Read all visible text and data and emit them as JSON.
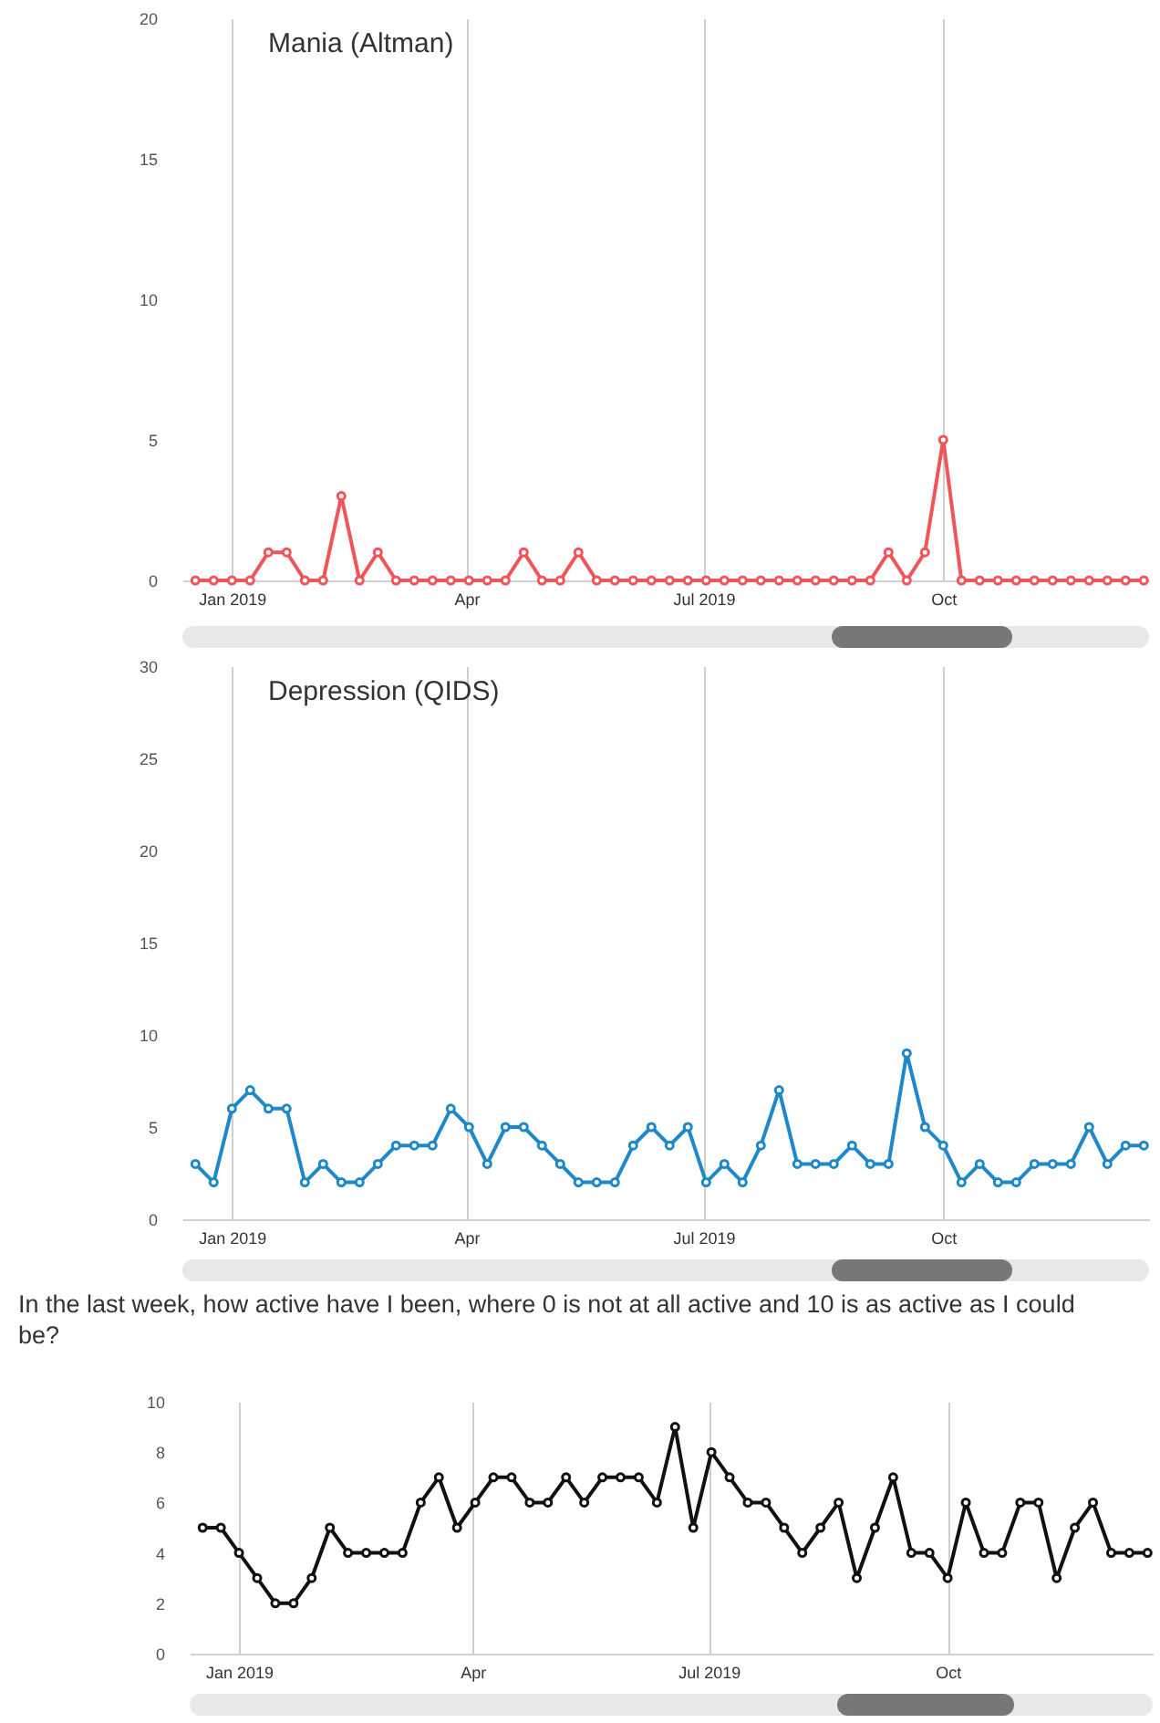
{
  "chart_data": [
    {
      "type": "line",
      "x": [
        "2018-12-18",
        "2018-12-25",
        "2019-01-01",
        "2019-01-08",
        "2019-01-15",
        "2019-01-22",
        "2019-01-29",
        "2019-02-05",
        "2019-02-12",
        "2019-02-19",
        "2019-02-26",
        "2019-03-05",
        "2019-03-12",
        "2019-03-19",
        "2019-03-26",
        "2019-04-02",
        "2019-04-09",
        "2019-04-16",
        "2019-04-23",
        "2019-04-30",
        "2019-05-07",
        "2019-05-14",
        "2019-05-21",
        "2019-05-28",
        "2019-06-04",
        "2019-06-11",
        "2019-06-18",
        "2019-06-25",
        "2019-07-02",
        "2019-07-09",
        "2019-07-16",
        "2019-07-23",
        "2019-07-30",
        "2019-08-06",
        "2019-08-13",
        "2019-08-20",
        "2019-08-27",
        "2019-09-03",
        "2019-09-10",
        "2019-09-17",
        "2019-09-24",
        "2019-10-01",
        "2019-10-08",
        "2019-10-15",
        "2019-10-22",
        "2019-10-29",
        "2019-11-05",
        "2019-11-12",
        "2019-11-19",
        "2019-11-26",
        "2019-12-03",
        "2019-12-10",
        "2019-12-17"
      ],
      "series": [
        {
          "name": "Mania (Altman)",
          "color": "#f0555a",
          "values": [
            0,
            0,
            0,
            0,
            1,
            1,
            0,
            0,
            3,
            0,
            1,
            0,
            0,
            0,
            0,
            0,
            0,
            0,
            1,
            0,
            0,
            1,
            0,
            0,
            0,
            0,
            0,
            0,
            0,
            0,
            0,
            0,
            0,
            0,
            0,
            0,
            0,
            0,
            1,
            0,
            1,
            5,
            0,
            0,
            0,
            0,
            0,
            0,
            0,
            0,
            0,
            0,
            0
          ]
        }
      ],
      "xlim": [
        "2018-12-13",
        "2019-12-19"
      ],
      "xticks": [
        {
          "value": "2019-01-01",
          "label": "Jan 2019"
        },
        {
          "value": "2019-04-01",
          "label": "Apr"
        },
        {
          "value": "2019-07-01",
          "label": "Jul 2019"
        },
        {
          "value": "2019-10-01",
          "label": "Oct"
        }
      ],
      "ylim": [
        0,
        20
      ],
      "yticks": [
        0,
        5,
        10,
        15,
        20
      ],
      "grid": "x",
      "legend": "top left",
      "marker": "circle"
    },
    {
      "type": "line",
      "x": [
        "2018-12-18",
        "2018-12-25",
        "2019-01-01",
        "2019-01-08",
        "2019-01-15",
        "2019-01-22",
        "2019-01-29",
        "2019-02-05",
        "2019-02-12",
        "2019-02-19",
        "2019-02-26",
        "2019-03-05",
        "2019-03-12",
        "2019-03-19",
        "2019-03-26",
        "2019-04-02",
        "2019-04-09",
        "2019-04-16",
        "2019-04-23",
        "2019-04-30",
        "2019-05-07",
        "2019-05-14",
        "2019-05-21",
        "2019-05-28",
        "2019-06-04",
        "2019-06-11",
        "2019-06-18",
        "2019-06-25",
        "2019-07-02",
        "2019-07-09",
        "2019-07-16",
        "2019-07-23",
        "2019-07-30",
        "2019-08-06",
        "2019-08-13",
        "2019-08-20",
        "2019-08-27",
        "2019-09-03",
        "2019-09-10",
        "2019-09-17",
        "2019-09-24",
        "2019-10-01",
        "2019-10-08",
        "2019-10-15",
        "2019-10-22",
        "2019-10-29",
        "2019-11-05",
        "2019-11-12",
        "2019-11-19",
        "2019-11-26",
        "2019-12-03",
        "2019-12-10",
        "2019-12-17"
      ],
      "series": [
        {
          "name": "Depression (QIDS)",
          "color": "#1f88c8",
          "values": [
            3,
            2,
            6,
            7,
            6,
            6,
            2,
            3,
            2,
            2,
            3,
            4,
            4,
            4,
            6,
            5,
            3,
            5,
            5,
            4,
            3,
            2,
            2,
            2,
            4,
            5,
            4,
            5,
            2,
            3,
            2,
            4,
            7,
            3,
            3,
            3,
            4,
            3,
            3,
            9,
            5,
            4,
            2,
            3,
            2,
            2,
            3,
            3,
            3,
            5,
            3,
            4,
            4
          ]
        }
      ],
      "xlim": [
        "2018-12-13",
        "2019-12-19"
      ],
      "xticks": [
        {
          "value": "2019-01-01",
          "label": "Jan 2019"
        },
        {
          "value": "2019-04-01",
          "label": "Apr"
        },
        {
          "value": "2019-07-01",
          "label": "Jul 2019"
        },
        {
          "value": "2019-10-01",
          "label": "Oct"
        }
      ],
      "ylim": [
        0,
        30
      ],
      "yticks": [
        0,
        5,
        10,
        15,
        20,
        25,
        30
      ],
      "grid": "x",
      "legend": "top left",
      "marker": "circle"
    },
    {
      "type": "line",
      "title": "In the last week, how active have I been, where 0 is not at all active and 10 is as active as I could be?",
      "x": [
        "2018-12-18",
        "2018-12-25",
        "2019-01-01",
        "2019-01-08",
        "2019-01-15",
        "2019-01-22",
        "2019-01-29",
        "2019-02-05",
        "2019-02-12",
        "2019-02-19",
        "2019-02-26",
        "2019-03-05",
        "2019-03-12",
        "2019-03-19",
        "2019-03-26",
        "2019-04-02",
        "2019-04-09",
        "2019-04-16",
        "2019-04-23",
        "2019-04-30",
        "2019-05-07",
        "2019-05-14",
        "2019-05-21",
        "2019-05-28",
        "2019-06-04",
        "2019-06-11",
        "2019-06-18",
        "2019-06-25",
        "2019-07-02",
        "2019-07-09",
        "2019-07-16",
        "2019-07-23",
        "2019-07-30",
        "2019-08-06",
        "2019-08-13",
        "2019-08-20",
        "2019-08-27",
        "2019-09-03",
        "2019-09-10",
        "2019-09-17",
        "2019-09-24",
        "2019-10-01",
        "2019-10-08",
        "2019-10-15",
        "2019-10-22",
        "2019-10-29",
        "2019-11-05",
        "2019-11-12",
        "2019-11-19",
        "2019-11-26",
        "2019-12-03",
        "2019-12-10",
        "2019-12-17"
      ],
      "series": [
        {
          "color": "#111111",
          "values": [
            5,
            5,
            4,
            3,
            2,
            2,
            3,
            5,
            4,
            4,
            4,
            4,
            6,
            7,
            5,
            6,
            7,
            7,
            6,
            6,
            7,
            6,
            7,
            7,
            7,
            6,
            9,
            5,
            8,
            7,
            6,
            6,
            5,
            4,
            5,
            6,
            3,
            5,
            7,
            4,
            4,
            3,
            6,
            4,
            4,
            6,
            6,
            3,
            5,
            6,
            4,
            4,
            4
          ]
        }
      ],
      "xlim": [
        "2018-12-13",
        "2019-12-19"
      ],
      "xticks": [
        {
          "value": "2019-01-01",
          "label": "Jan 2019"
        },
        {
          "value": "2019-04-01",
          "label": "Apr"
        },
        {
          "value": "2019-07-01",
          "label": "Jul 2019"
        },
        {
          "value": "2019-10-01",
          "label": "Oct"
        }
      ],
      "ylim": [
        0,
        10
      ],
      "yticks": [
        0,
        2,
        4,
        6,
        8,
        10
      ],
      "grid": "x",
      "marker": "circle"
    }
  ]
}
